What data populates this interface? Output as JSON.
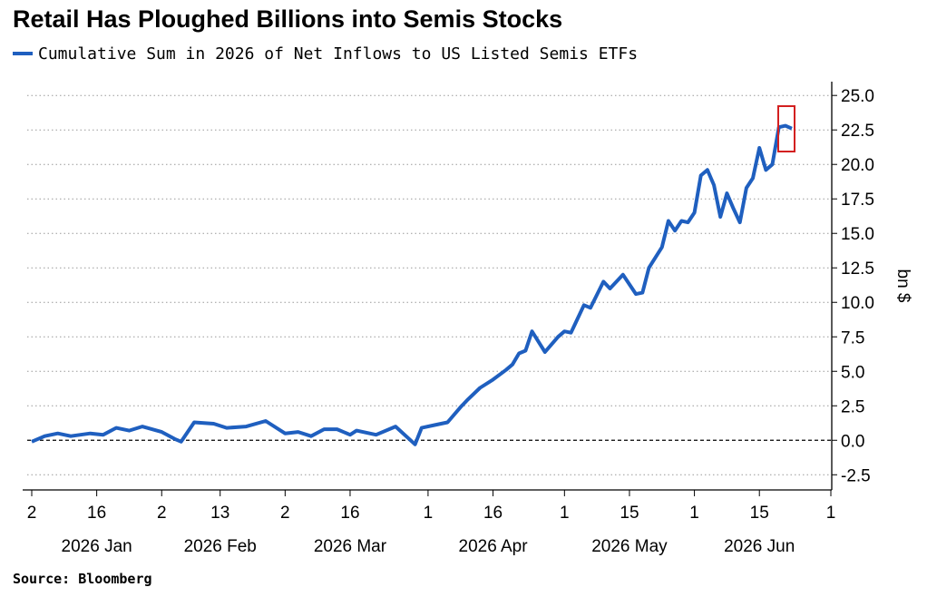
{
  "chart_data": {
    "type": "line",
    "title": "Retail Has Ploughed Billions into Semis Stocks",
    "y_label": "bn $",
    "source": "Source: Bloomberg",
    "series": [
      {
        "name": "Cumulative Sum in 2026 of Net Inflows to US Listed Semis ETFs",
        "color": "#1f5fbf",
        "x": [
          "2026-01-02",
          "2026-01-06",
          "2026-01-08",
          "2026-01-12",
          "2026-01-15",
          "2026-01-20",
          "2026-01-22",
          "2026-01-26",
          "2026-01-28",
          "2026-02-02",
          "2026-02-04",
          "2026-02-05",
          "2026-02-09",
          "2026-02-12",
          "2026-02-17",
          "2026-02-20",
          "2026-02-25",
          "2026-03-02",
          "2026-03-04",
          "2026-03-06",
          "2026-03-10",
          "2026-03-12",
          "2026-03-16",
          "2026-03-17",
          "2026-03-20",
          "2026-03-25",
          "2026-03-30",
          "2026-03-31",
          "2026-04-02",
          "2026-04-07",
          "2026-04-09",
          "2026-04-10",
          "2026-04-14",
          "2026-04-16",
          "2026-04-20",
          "2026-04-21",
          "2026-04-22",
          "2026-04-23",
          "2026-04-24",
          "2026-04-28",
          "2026-04-30",
          "2026-05-01",
          "2026-05-04",
          "2026-05-06",
          "2026-05-07",
          "2026-05-11",
          "2026-05-12",
          "2026-05-14",
          "2026-05-18",
          "2026-05-19",
          "2026-05-20",
          "2026-05-22",
          "2026-05-26",
          "2026-05-27",
          "2026-05-28",
          "2026-05-29",
          "2026-06-01",
          "2026-06-02",
          "2026-06-03",
          "2026-06-04",
          "2026-06-05",
          "2026-06-08",
          "2026-06-09",
          "2026-06-10",
          "2026-06-11",
          "2026-06-12",
          "2026-06-15",
          "2026-06-16",
          "2026-06-17",
          "2026-06-18",
          "2026-06-22",
          "2026-06-23"
        ],
        "values": [
          -0.1,
          0.3,
          0.5,
          0.3,
          0.5,
          0.4,
          0.9,
          0.7,
          1.0,
          0.6,
          0.1,
          -0.1,
          1.3,
          1.2,
          0.9,
          1.0,
          1.4,
          0.5,
          0.6,
          0.3,
          0.8,
          0.8,
          0.4,
          0.7,
          0.4,
          1.0,
          -0.3,
          0.9,
          1.1,
          1.3,
          2.4,
          2.9,
          3.8,
          4.4,
          5.1,
          5.5,
          6.3,
          6.5,
          7.9,
          6.4,
          7.5,
          7.9,
          7.8,
          9.8,
          9.6,
          11.5,
          11.0,
          12.0,
          10.6,
          10.7,
          12.5,
          14.0,
          15.9,
          15.2,
          15.9,
          15.8,
          16.5,
          19.2,
          19.6,
          18.5,
          16.2,
          17.9,
          16.8,
          15.8,
          18.3,
          19.0,
          21.2,
          19.6,
          20.0,
          22.7,
          22.8,
          22.6
        ]
      }
    ],
    "xlim": [
      "2026-01-02",
      "2026-07-01"
    ],
    "xticks": [
      {
        "value": "2026-01-02",
        "label": "2"
      },
      {
        "value": "2026-01-16",
        "label": "16"
      },
      {
        "value": "2026-02-02",
        "label": "2"
      },
      {
        "value": "2026-02-13",
        "label": "13"
      },
      {
        "value": "2026-03-02",
        "label": "2"
      },
      {
        "value": "2026-03-16",
        "label": "16"
      },
      {
        "value": "2026-04-01",
        "label": "1"
      },
      {
        "value": "2026-04-16",
        "label": "16"
      },
      {
        "value": "2026-05-01",
        "label": "1"
      },
      {
        "value": "2026-05-15",
        "label": "15"
      },
      {
        "value": "2026-06-01",
        "label": "1"
      },
      {
        "value": "2026-06-15",
        "label": "15"
      },
      {
        "value": "2026-07-01",
        "label": "1"
      }
    ],
    "month_labels": [
      {
        "value": "2026-01-16",
        "label": "2026 Jan"
      },
      {
        "value": "2026-02-13",
        "label": "2026 Feb"
      },
      {
        "value": "2026-03-16",
        "label": "2026 Mar"
      },
      {
        "value": "2026-04-16",
        "label": "2026 Apr"
      },
      {
        "value": "2026-05-15",
        "label": "2026 May"
      },
      {
        "value": "2026-06-15",
        "label": "2026 Jun"
      }
    ],
    "ylim": [
      -3.6,
      26
    ],
    "yticks": [
      -2.5,
      {
        "value": 0,
        "label": "0.0"
      },
      2.5,
      {
        "value": 5,
        "label": "5.0"
      },
      7.5,
      {
        "value": 10,
        "label": "10.0"
      },
      12.5,
      {
        "value": 15,
        "label": "15.0"
      },
      17.5,
      {
        "value": 20,
        "label": "20.0"
      },
      22.5,
      {
        "value": 25,
        "label": "25.0"
      }
    ],
    "grid": true
  }
}
